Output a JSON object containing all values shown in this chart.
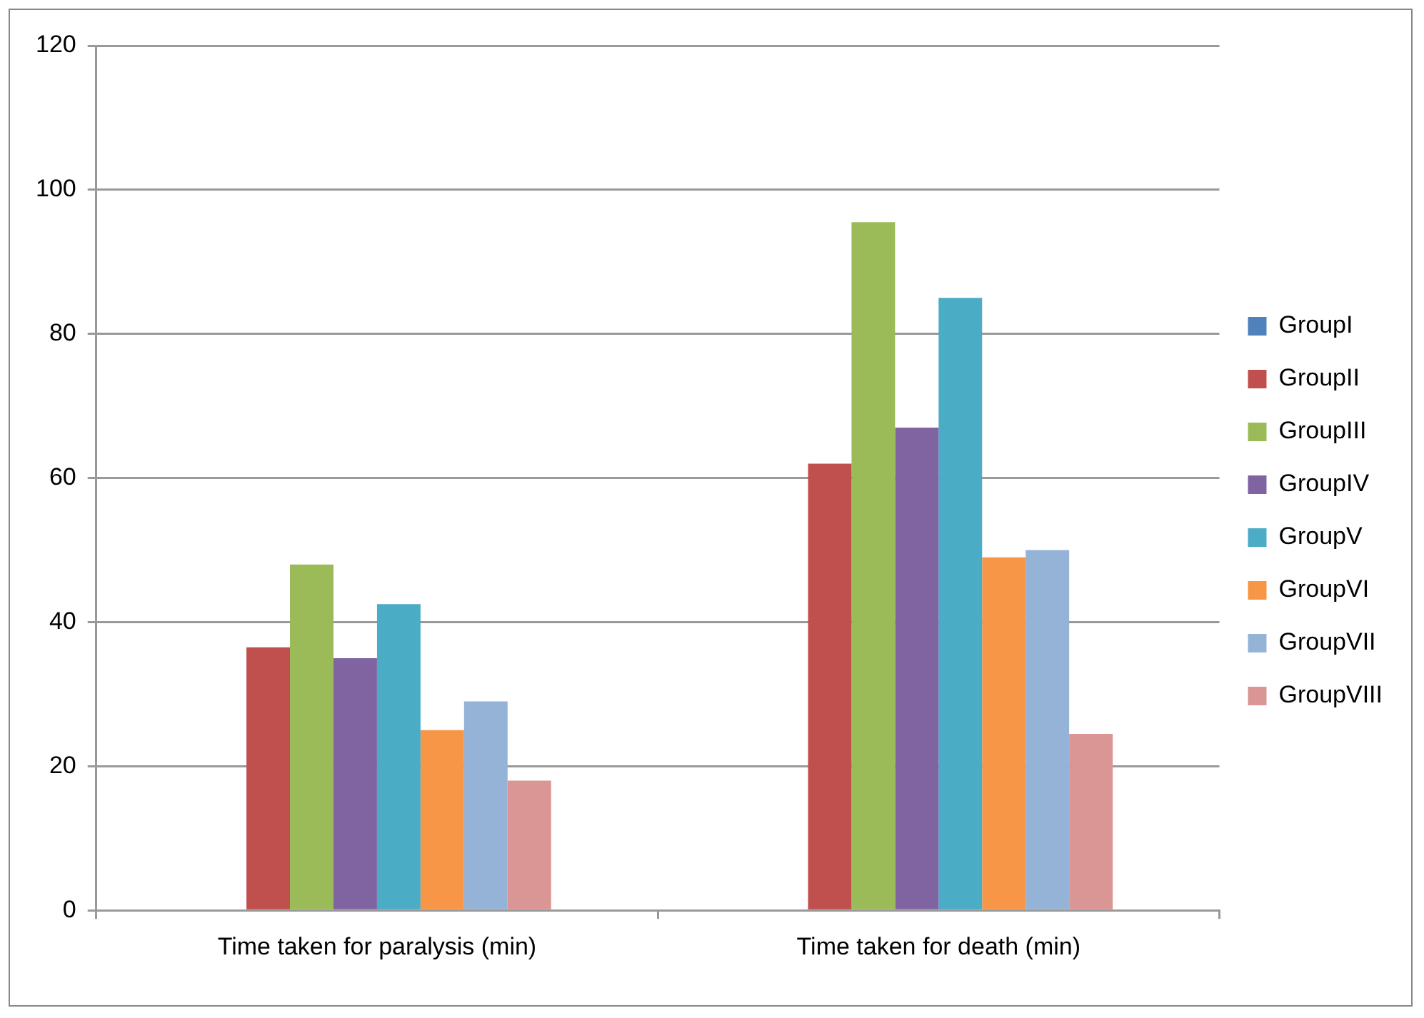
{
  "chart_data": {
    "type": "bar",
    "categories": [
      "Time taken for paralysis (min)",
      "Time taken for death (min)"
    ],
    "series": [
      {
        "name": "GroupI",
        "color": "#4f81bd",
        "values": [
          0,
          0
        ]
      },
      {
        "name": "GroupII",
        "color": "#c0504d",
        "values": [
          36.5,
          62
        ]
      },
      {
        "name": "GroupIII",
        "color": "#9bbb59",
        "values": [
          48,
          95.5
        ]
      },
      {
        "name": "GroupIV",
        "color": "#8064a2",
        "values": [
          35,
          67
        ]
      },
      {
        "name": "GroupV",
        "color": "#4bacc6",
        "values": [
          42.5,
          85
        ]
      },
      {
        "name": "GroupVI",
        "color": "#f79646",
        "values": [
          25,
          49
        ]
      },
      {
        "name": "GroupVII",
        "color": "#95b3d7",
        "values": [
          29,
          50
        ]
      },
      {
        "name": "GroupVIII",
        "color": "#d99694",
        "values": [
          18,
          24.5
        ]
      }
    ],
    "ylim": [
      0,
      120
    ],
    "yticks": [
      0,
      20,
      40,
      60,
      80,
      100,
      120
    ],
    "grid": "y",
    "legend": "right"
  }
}
